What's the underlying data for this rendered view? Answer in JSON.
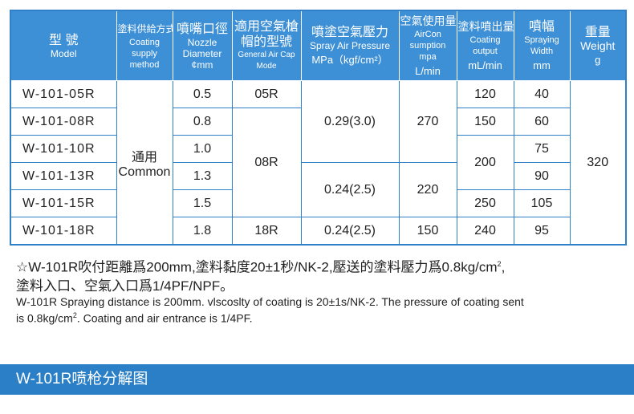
{
  "table": {
    "headers": {
      "model": {
        "zh": "型 號",
        "en": "Model"
      },
      "method": {
        "zh": "塗料供給方式",
        "en": "Coating supply method"
      },
      "nozzle": {
        "zh": "噴嘴口徑",
        "en": "Nozzle Diameter",
        "unit": "¢mm"
      },
      "cap": {
        "zh": "適用空氣槍帽的型號",
        "en": "General Air Cap Mode"
      },
      "pressure": {
        "zh": "噴塗空氣壓力",
        "en": "Spray Air Pressure",
        "unit": "MPa（kgf/cm²）"
      },
      "aircon": {
        "zh": "空氣使用量",
        "en": "AirCon sumption mpa",
        "unit": "L/min"
      },
      "output": {
        "zh": "塗料噴出量",
        "en": "Coating output",
        "unit": "mL/min"
      },
      "width": {
        "zh": "噴幅",
        "en": "Spraying Width",
        "unit": "mm"
      },
      "weight": {
        "zh": "重量",
        "en": "Weight",
        "unit": "g"
      }
    },
    "models": [
      "W-101-05R",
      "W-101-08R",
      "W-101-10R",
      "W-101-13R",
      "W-101-15R",
      "W-101-18R"
    ],
    "method_zh": "通用",
    "method_en": "Common",
    "nozzles": [
      "0.5",
      "0.8",
      "1.0",
      "1.3",
      "1.5",
      "1.8"
    ],
    "caps": [
      "05R",
      "08R",
      "18R"
    ],
    "pressures": [
      "0.29(3.0)",
      "0.24(2.5)",
      "0.24(2.5)"
    ],
    "aircon": [
      "270",
      "220",
      "150"
    ],
    "output": [
      "120",
      "150",
      "200",
      "250",
      "240"
    ],
    "widths": [
      "40",
      "60",
      "75",
      "90",
      "105",
      "95"
    ],
    "weight": "320"
  },
  "note": {
    "zh_line1": "☆W-101R吹付距離爲200mm,塗料黏度20±1秒/NK-2,壓送的塗料壓力爲0.8kg/cm",
    "zh_line1_sup": "2",
    "zh_line1_end": ",",
    "zh_line2": "塗料入口、空氣入口爲1/4PF/NPF。",
    "en_line1": "W-101R Spraying distance is 200mm. vlscoslty of coating is 20±1s/NK-2. The pressure of coating sent",
    "en_line2_a": "is 0.8kg/cm",
    "en_line2_sup": "2",
    "en_line2_b": ". Coating and air entrance is 1/4PF."
  },
  "banner": {
    "title": "W-101R喷枪分解图"
  }
}
